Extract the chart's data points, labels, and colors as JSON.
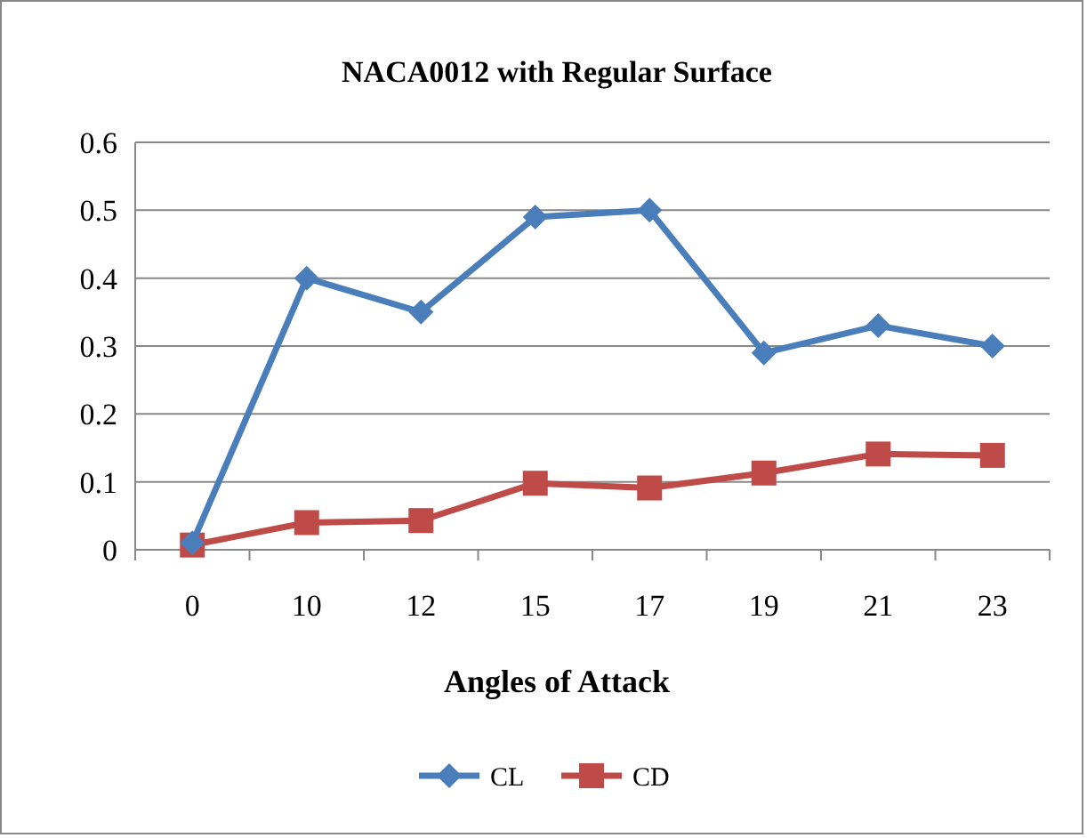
{
  "chart_data": {
    "type": "line",
    "title": "NACA0012 with Regular Surface",
    "xlabel": "Angles of Attack",
    "categories": [
      "0",
      "10",
      "12",
      "15",
      "17",
      "19",
      "21",
      "23"
    ],
    "series": [
      {
        "name": "CL",
        "color": "#4a7ebb",
        "marker": "diamond",
        "values": [
          0.01,
          0.4,
          0.35,
          0.49,
          0.5,
          0.29,
          0.33,
          0.3
        ]
      },
      {
        "name": "CD",
        "color": "#be4b48",
        "marker": "square",
        "values": [
          0.007,
          0.04,
          0.043,
          0.098,
          0.091,
          0.113,
          0.141,
          0.139
        ]
      }
    ],
    "ylim": [
      0,
      0.6
    ],
    "yticks": [
      0,
      0.1,
      0.2,
      0.3,
      0.4,
      0.5,
      0.6
    ],
    "grid": "y",
    "legend": "bottom"
  }
}
